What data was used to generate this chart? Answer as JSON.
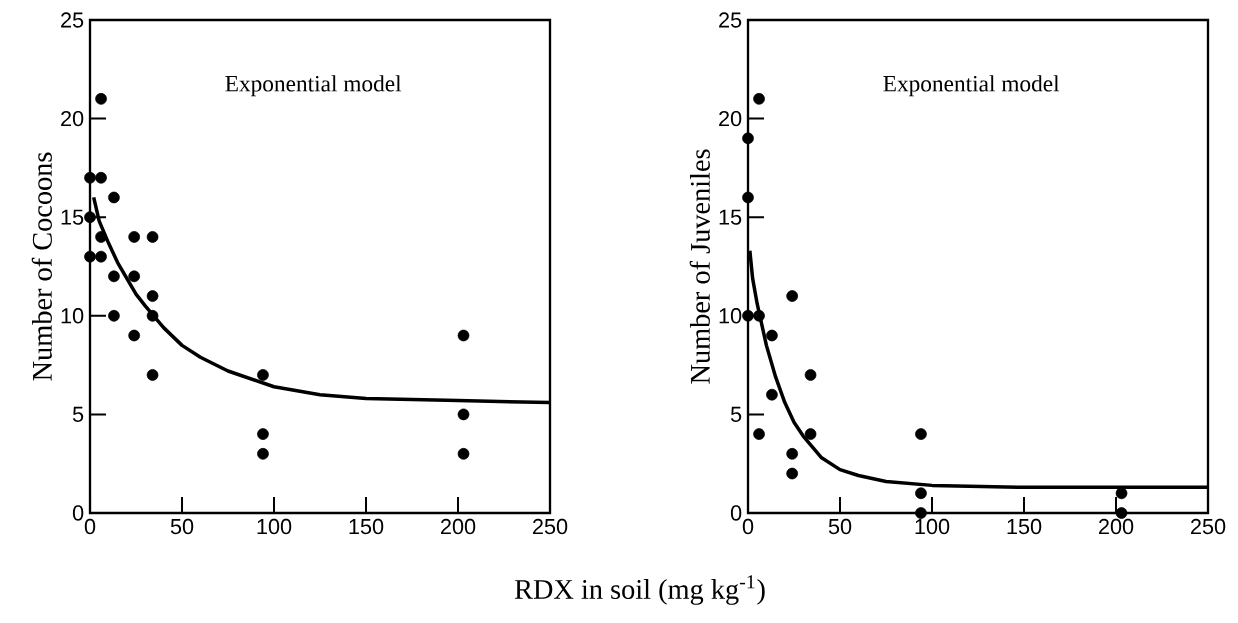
{
  "chart_data": [
    {
      "type": "scatter",
      "xlabel": "RDX in soil (mg kg$^{-1}$)",
      "ylabel": "Number of Cocoons",
      "annotations": [
        "Exponential model"
      ],
      "xlim": [
        0,
        250
      ],
      "ylim": [
        0,
        25
      ],
      "xticks": [
        0,
        50,
        100,
        150,
        200,
        250
      ],
      "yticks": [
        0,
        5,
        10,
        15,
        20,
        25
      ],
      "series": [
        {
          "color": "#000000",
          "marker": "circle",
          "x": [
            0,
            0,
            0,
            6,
            6,
            6,
            6,
            13,
            13,
            13,
            24,
            24,
            24,
            34,
            34,
            34,
            34,
            94,
            94,
            94,
            203,
            203,
            203
          ],
          "values": [
            17,
            15,
            13,
            21,
            17,
            14,
            13,
            16,
            12,
            10,
            14,
            12,
            9,
            14,
            11,
            10,
            7,
            7,
            4,
            3,
            9,
            5,
            3
          ]
        },
        {
          "type": "line",
          "color": "#000000",
          "marker": "none",
          "line_style": "solid",
          "x": [
            2,
            5,
            10,
            15,
            20,
            25,
            30,
            40,
            50,
            60,
            75,
            100,
            125,
            150,
            200,
            250
          ],
          "values": [
            16.0,
            14.8,
            13.7,
            12.7,
            11.9,
            11.1,
            10.5,
            9.4,
            8.5,
            7.9,
            7.2,
            6.4,
            6.0,
            5.8,
            5.7,
            5.6
          ]
        }
      ]
    },
    {
      "type": "scatter",
      "ylabel": "Number of Juveniles",
      "annotations": [
        "Exponential model"
      ],
      "xlim": [
        0,
        250
      ],
      "ylim": [
        0,
        25
      ],
      "xticks": [
        0,
        50,
        100,
        150,
        200,
        250
      ],
      "yticks": [
        0,
        5,
        10,
        15,
        20,
        25
      ],
      "series": [
        {
          "color": "#000000",
          "marker": "circle",
          "x": [
            0,
            0,
            0,
            6,
            6,
            6,
            13,
            13,
            24,
            24,
            24,
            34,
            34,
            94,
            94,
            94,
            203,
            203
          ],
          "values": [
            19,
            16,
            10,
            21,
            10,
            4,
            9,
            6,
            11,
            3,
            2,
            7,
            4,
            4,
            1,
            0,
            1,
            0
          ]
        },
        {
          "type": "line",
          "color": "#000000",
          "marker": "none",
          "line_style": "solid",
          "x": [
            1,
            2.5,
            5,
            10,
            15,
            20,
            25,
            30,
            40,
            50,
            60,
            75,
            100,
            150,
            250
          ],
          "values": [
            13.3,
            11.9,
            10.6,
            8.5,
            6.9,
            5.6,
            4.6,
            3.9,
            2.8,
            2.2,
            1.9,
            1.6,
            1.4,
            1.3,
            1.3
          ]
        }
      ]
    }
  ]
}
